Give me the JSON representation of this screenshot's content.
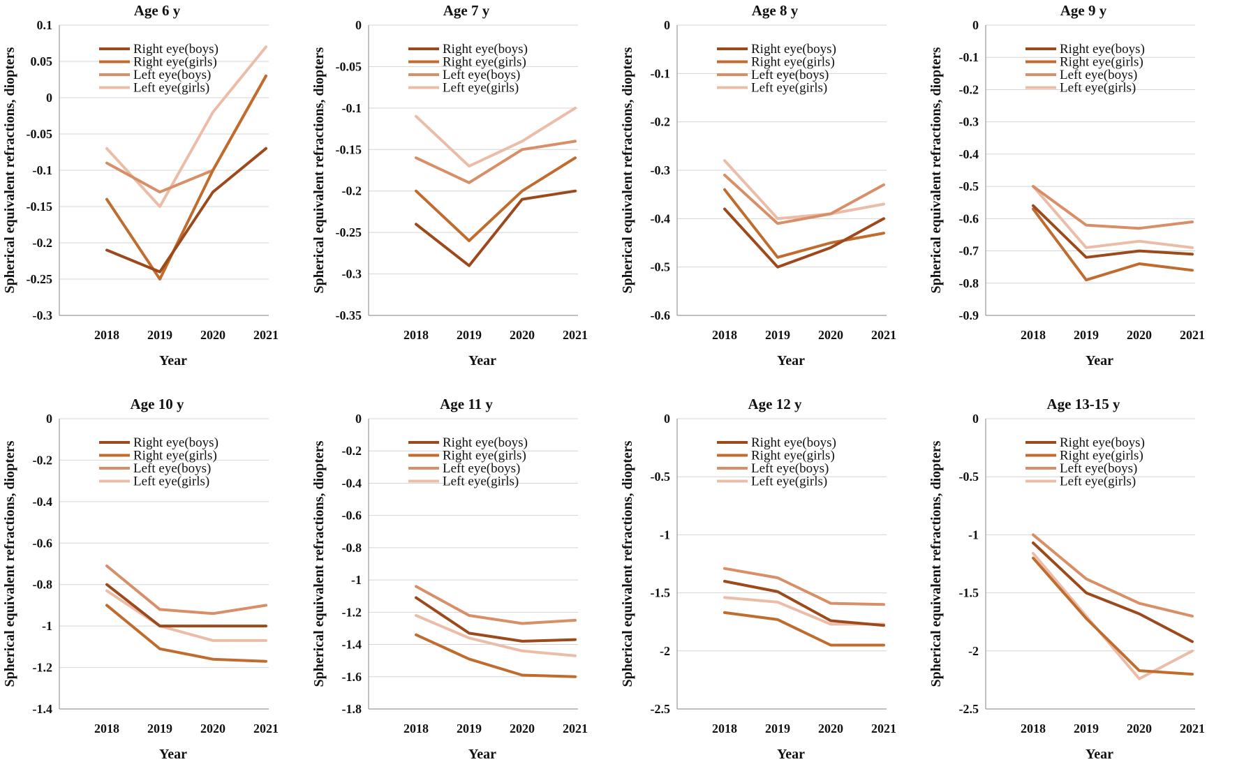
{
  "colors": {
    "right_boys": "#9c4a1c",
    "right_girls": "#c06c2e",
    "left_boys": "#d88e66",
    "left_girls": "#ebbda8"
  },
  "chart_data": [
    {
      "type": "line",
      "title": "Age 6 y",
      "xlabel": "Year",
      "ylabel": "Spherical equivalent refractions, diopters",
      "ylim": [
        -0.3,
        0.1
      ],
      "ystep": 0.05,
      "yticks": [
        "0.1",
        "0.05",
        "0",
        "-0.05",
        "-0.1",
        "-0.15",
        "-0.2",
        "-0.25",
        "-0.3"
      ],
      "categories": [
        "2018",
        "2019",
        "2020",
        "2021"
      ],
      "series": [
        {
          "name": "Right eye(boys)",
          "color_key": "right_boys",
          "values": [
            -0.21,
            -0.24,
            -0.13,
            -0.07
          ]
        },
        {
          "name": "Right eye(girls)",
          "color_key": "right_girls",
          "values": [
            -0.14,
            -0.25,
            -0.1,
            0.03
          ]
        },
        {
          "name": "Left eye(boys)",
          "color_key": "left_boys",
          "values": [
            -0.09,
            -0.13,
            -0.1,
            0.03
          ]
        },
        {
          "name": "Left eye(girls)",
          "color_key": "left_girls",
          "values": [
            -0.07,
            -0.15,
            -0.02,
            0.07
          ]
        }
      ]
    },
    {
      "type": "line",
      "title": "Age 7 y",
      "xlabel": "Year",
      "ylabel": "Spherical equivalent refractions, diopters",
      "ylim": [
        -0.35,
        0
      ],
      "ystep": 0.05,
      "yticks": [
        "0",
        "-0.05",
        "-0.1",
        "-0.15",
        "-0.2",
        "-0.25",
        "-0.3",
        "-0.35"
      ],
      "categories": [
        "2018",
        "2019",
        "2020",
        "2021"
      ],
      "series": [
        {
          "name": "Right eye(boys)",
          "color_key": "right_boys",
          "values": [
            -0.24,
            -0.29,
            -0.21,
            -0.2
          ]
        },
        {
          "name": "Right eye(girls)",
          "color_key": "right_girls",
          "values": [
            -0.2,
            -0.26,
            -0.2,
            -0.16
          ]
        },
        {
          "name": "Left eye(boys)",
          "color_key": "left_boys",
          "values": [
            -0.16,
            -0.19,
            -0.15,
            -0.14
          ]
        },
        {
          "name": "Left eye(girls)",
          "color_key": "left_girls",
          "values": [
            -0.11,
            -0.17,
            -0.14,
            -0.1
          ]
        }
      ]
    },
    {
      "type": "line",
      "title": "Age 8 y",
      "xlabel": "Year",
      "ylabel": "Spherical equivalent refractions, diopters",
      "ylim": [
        -0.6,
        0
      ],
      "ystep": 0.1,
      "yticks": [
        "0",
        "-0.1",
        "-0.2",
        "-0.3",
        "-0.4",
        "-0.5",
        "-0.6"
      ],
      "categories": [
        "2018",
        "2019",
        "2020",
        "2021"
      ],
      "series": [
        {
          "name": "Right eye(boys)",
          "color_key": "right_boys",
          "values": [
            -0.38,
            -0.5,
            -0.46,
            -0.4
          ]
        },
        {
          "name": "Right eye(girls)",
          "color_key": "right_girls",
          "values": [
            -0.34,
            -0.48,
            -0.45,
            -0.43
          ]
        },
        {
          "name": "Left eye(boys)",
          "color_key": "left_boys",
          "values": [
            -0.31,
            -0.41,
            -0.39,
            -0.33
          ]
        },
        {
          "name": "Left eye(girls)",
          "color_key": "left_girls",
          "values": [
            -0.28,
            -0.4,
            -0.39,
            -0.37
          ]
        }
      ]
    },
    {
      "type": "line",
      "title": "Age 9 y",
      "xlabel": "Year",
      "ylabel": "Spherical equivalent refractions, diopters",
      "ylim": [
        -0.9,
        0
      ],
      "ystep": 0.1,
      "yticks": [
        "0",
        "-0.1",
        "-0.2",
        "-0.3",
        "-0.4",
        "-0.5",
        "-0.6",
        "-0.7",
        "-0.8",
        "-0.9"
      ],
      "categories": [
        "2018",
        "2019",
        "2020",
        "2021"
      ],
      "series": [
        {
          "name": "Right eye(boys)",
          "color_key": "right_boys",
          "values": [
            -0.56,
            -0.72,
            -0.7,
            -0.71
          ]
        },
        {
          "name": "Right eye(girls)",
          "color_key": "right_girls",
          "values": [
            -0.57,
            -0.79,
            -0.74,
            -0.76
          ]
        },
        {
          "name": "Left eye(boys)",
          "color_key": "left_boys",
          "values": [
            -0.5,
            -0.62,
            -0.63,
            -0.61
          ]
        },
        {
          "name": "Left eye(girls)",
          "color_key": "left_girls",
          "values": [
            -0.5,
            -0.69,
            -0.67,
            -0.69
          ]
        }
      ]
    },
    {
      "type": "line",
      "title": "Age 10 y",
      "xlabel": "Year",
      "ylabel": "Spherical equivalent refractions, diopters",
      "ylim": [
        -1.4,
        0
      ],
      "ystep": 0.2,
      "yticks": [
        "0",
        "-0.2",
        "-0.4",
        "-0.6",
        "-0.8",
        "-1",
        "-1.2",
        "-1.4"
      ],
      "categories": [
        "2018",
        "2019",
        "2020",
        "2021"
      ],
      "series": [
        {
          "name": "Right eye(boys)",
          "color_key": "right_boys",
          "values": [
            -0.8,
            -1.0,
            -1.0,
            -1.0
          ]
        },
        {
          "name": "Right eye(girls)",
          "color_key": "right_girls",
          "values": [
            -0.9,
            -1.11,
            -1.16,
            -1.17
          ]
        },
        {
          "name": "Left eye(boys)",
          "color_key": "left_boys",
          "values": [
            -0.71,
            -0.92,
            -0.94,
            -0.9
          ]
        },
        {
          "name": "Left eye(girls)",
          "color_key": "left_girls",
          "values": [
            -0.83,
            -1.0,
            -1.07,
            -1.07
          ]
        }
      ]
    },
    {
      "type": "line",
      "title": "Age 11 y",
      "xlabel": "Year",
      "ylabel": "Spherical equivalent refractions, diopters",
      "ylim": [
        -1.8,
        0
      ],
      "ystep": 0.2,
      "yticks": [
        "0",
        "-0.2",
        "-0.4",
        "-0.6",
        "-0.8",
        "-1",
        "-1.2",
        "-1.4",
        "-1.6",
        "-1.8"
      ],
      "categories": [
        "2018",
        "2019",
        "2020",
        "2021"
      ],
      "series": [
        {
          "name": "Right eye(boys)",
          "color_key": "right_boys",
          "values": [
            -1.11,
            -1.33,
            -1.38,
            -1.37
          ]
        },
        {
          "name": "Right eye(girls)",
          "color_key": "right_girls",
          "values": [
            -1.34,
            -1.49,
            -1.59,
            -1.6
          ]
        },
        {
          "name": "Left eye(boys)",
          "color_key": "left_boys",
          "values": [
            -1.04,
            -1.22,
            -1.27,
            -1.25
          ]
        },
        {
          "name": "Left eye(girls)",
          "color_key": "left_girls",
          "values": [
            -1.22,
            -1.36,
            -1.44,
            -1.47
          ]
        }
      ]
    },
    {
      "type": "line",
      "title": "Age 12 y",
      "xlabel": "Year",
      "ylabel": "Spherical equivalent refractions, diopters",
      "ylim": [
        -2.5,
        0
      ],
      "ystep": 0.5,
      "yticks": [
        "0",
        "-0.5",
        "-1",
        "-1.5",
        "-2",
        "-2.5"
      ],
      "categories": [
        "2018",
        "2019",
        "2020",
        "2021"
      ],
      "series": [
        {
          "name": "Right eye(boys)",
          "color_key": "right_boys",
          "values": [
            -1.4,
            -1.49,
            -1.74,
            -1.78
          ]
        },
        {
          "name": "Right eye(girls)",
          "color_key": "right_girls",
          "values": [
            -1.67,
            -1.73,
            -1.95,
            -1.95
          ]
        },
        {
          "name": "Left eye(boys)",
          "color_key": "left_boys",
          "values": [
            -1.29,
            -1.37,
            -1.59,
            -1.6
          ]
        },
        {
          "name": "Left eye(girls)",
          "color_key": "left_girls",
          "values": [
            -1.54,
            -1.58,
            -1.77,
            -1.77
          ]
        }
      ]
    },
    {
      "type": "line",
      "title": "Age 13-15 y",
      "xlabel": "Year",
      "ylabel": "Spherical equivalent refractions, diopters",
      "ylim": [
        -2.5,
        0
      ],
      "ystep": 0.5,
      "yticks": [
        "0",
        "-0.5",
        "-1",
        "-1.5",
        "-2",
        "-2.5"
      ],
      "categories": [
        "2018",
        "2019",
        "2020",
        "2021"
      ],
      "series": [
        {
          "name": "Right eye(boys)",
          "color_key": "right_boys",
          "values": [
            -1.07,
            -1.5,
            -1.68,
            -1.92
          ]
        },
        {
          "name": "Right eye(girls)",
          "color_key": "right_girls",
          "values": [
            -1.2,
            -1.72,
            -2.17,
            -2.2
          ]
        },
        {
          "name": "Left eye(boys)",
          "color_key": "left_boys",
          "values": [
            -1.0,
            -1.38,
            -1.59,
            -1.7
          ]
        },
        {
          "name": "Left eye(girls)",
          "color_key": "left_girls",
          "values": [
            -1.16,
            -1.7,
            -2.24,
            -2.0
          ]
        }
      ]
    }
  ]
}
